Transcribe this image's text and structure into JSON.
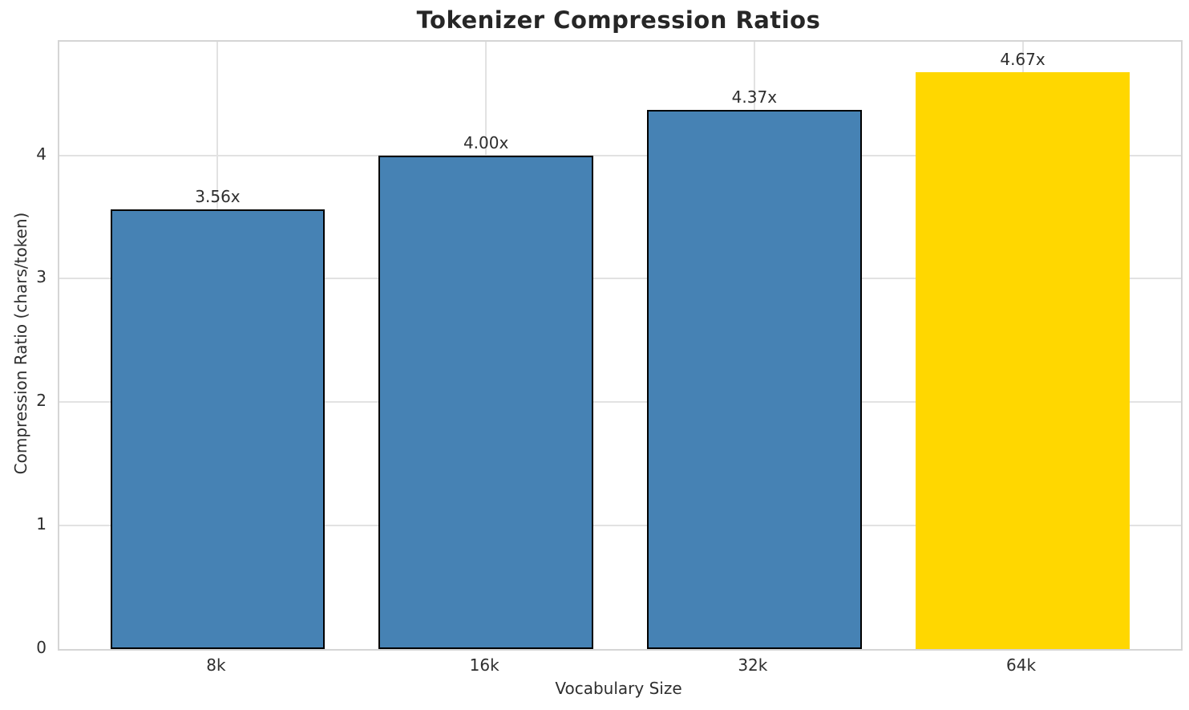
{
  "chart_data": {
    "type": "bar",
    "title": "Tokenizer Compression Ratios",
    "xlabel": "Vocabulary Size",
    "ylabel": "Compression Ratio (chars/token)",
    "categories": [
      "8k",
      "16k",
      "32k",
      "64k"
    ],
    "values": [
      3.56,
      4.0,
      4.37,
      4.67
    ],
    "bar_labels": [
      "3.56x",
      "4.00x",
      "4.37x",
      "4.67x"
    ],
    "yticks": [
      0,
      1,
      2,
      3,
      4
    ],
    "ylim": [
      0,
      4.92
    ],
    "grid": true,
    "legend_position": "none",
    "base_color": "#4682b4",
    "highlight_color": "#ffd700",
    "bar_colors": [
      "#4682b4",
      "#4682b4",
      "#4682b4",
      "#ffd700"
    ],
    "bar_edge_colors": [
      "#000000",
      "#000000",
      "#000000",
      "transparent"
    ],
    "spine_color": "#d5d5d5",
    "grid_color": "#e2e2e2",
    "text_color": "#2e2e2e",
    "title_color": "#262626"
  }
}
